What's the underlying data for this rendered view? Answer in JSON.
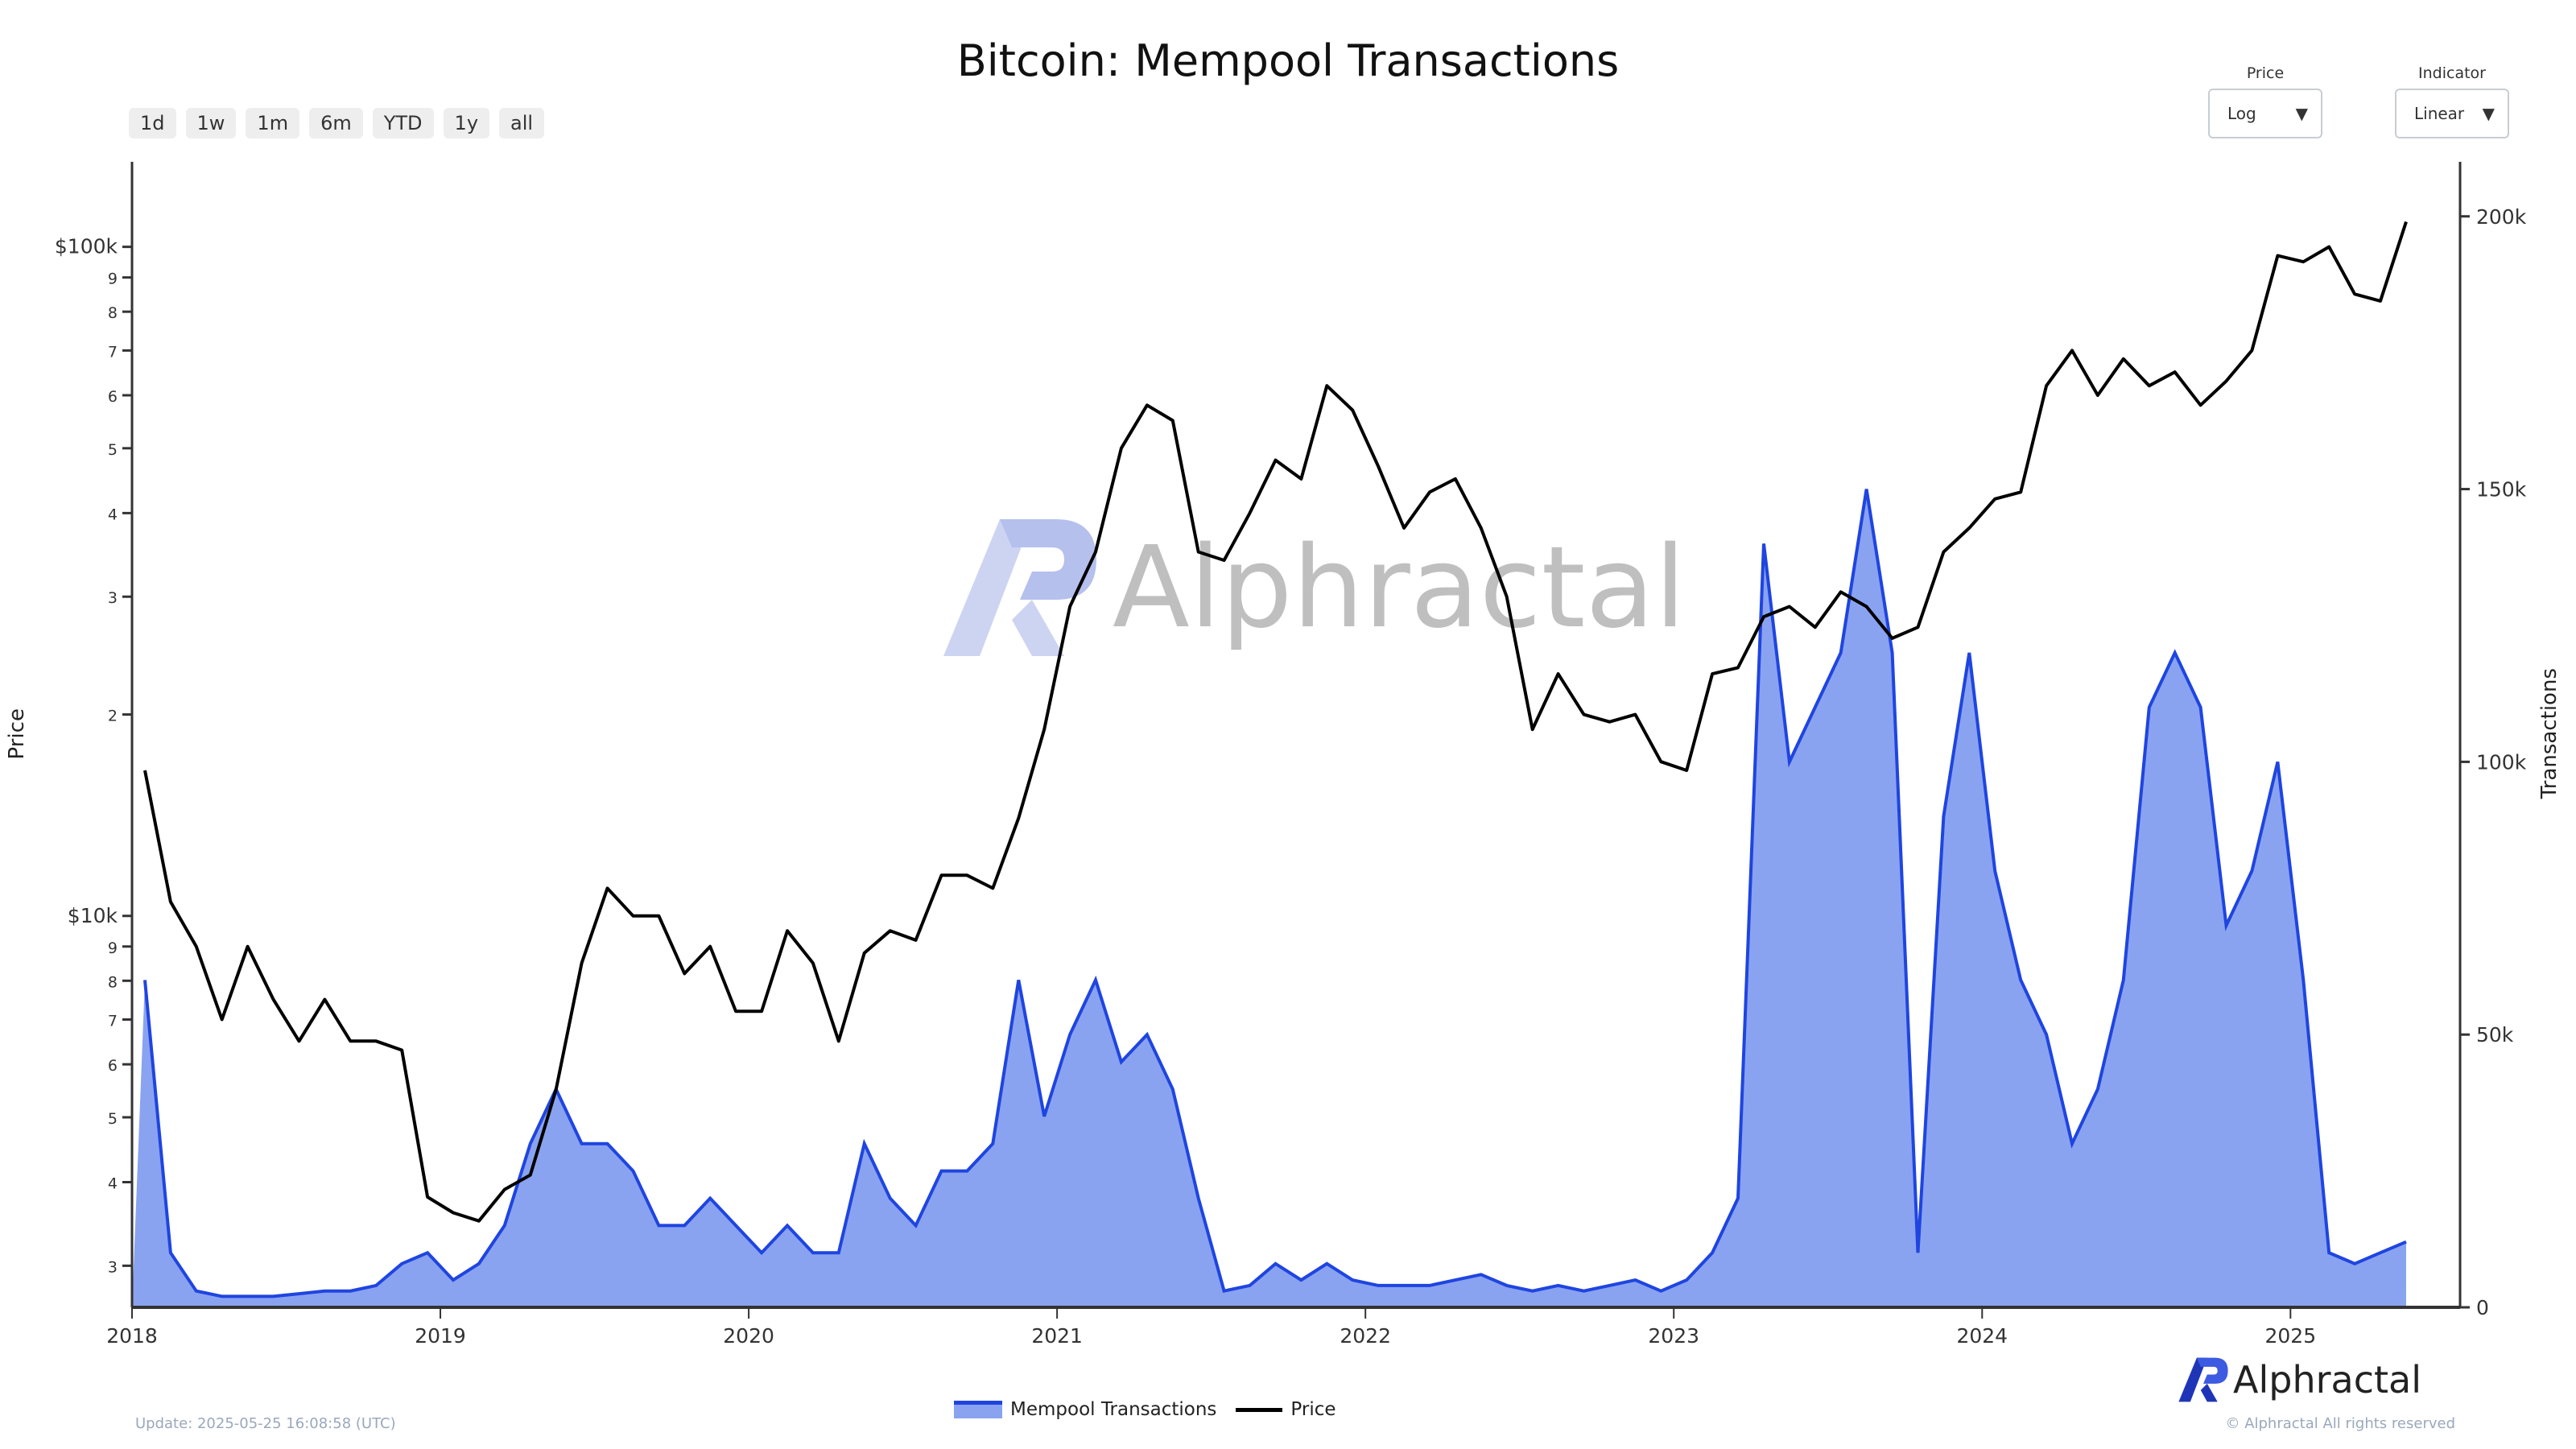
{
  "title": "Bitcoin: Mempool Transactions",
  "range_buttons": [
    "1d",
    "1w",
    "1m",
    "6m",
    "YTD",
    "1y",
    "all"
  ],
  "dropdowns": {
    "price": {
      "label": "Price",
      "value": "Log"
    },
    "indicator": {
      "label": "Indicator",
      "value": "Linear"
    }
  },
  "watermark": "Alphractal",
  "logo_text": "Alphractal",
  "footer": {
    "update": "Update: 2025-05-25 16:08:58 (UTC)",
    "copyright": "© Alphractal All rights reserved"
  },
  "colors": {
    "area_fill": "#8aa3f0",
    "area_line": "#1f45e0",
    "price_line": "#000000"
  },
  "chart_data": {
    "type": "area+line",
    "title": "Bitcoin: Mempool Transactions",
    "x_start": "2018-01",
    "x_step": "1 month",
    "x_range_years": [
      2018.0,
      2025.55
    ],
    "x_ticks": [
      "2018",
      "2019",
      "2020",
      "2021",
      "2022",
      "2023",
      "2024",
      "2025"
    ],
    "y_left": {
      "label": "Price",
      "scale": "log",
      "range": [
        2600,
        134000
      ],
      "ticks": [
        {
          "v": 100000,
          "t": "$100k"
        },
        {
          "v": 90000,
          "t": "9"
        },
        {
          "v": 80000,
          "t": "8"
        },
        {
          "v": 70000,
          "t": "7"
        },
        {
          "v": 60000,
          "t": "6"
        },
        {
          "v": 50000,
          "t": "5"
        },
        {
          "v": 40000,
          "t": "4"
        },
        {
          "v": 30000,
          "t": "3"
        },
        {
          "v": 20000,
          "t": "2"
        },
        {
          "v": 10000,
          "t": "$10k"
        },
        {
          "v": 9000,
          "t": "9"
        },
        {
          "v": 8000,
          "t": "8"
        },
        {
          "v": 7000,
          "t": "7"
        },
        {
          "v": 6000,
          "t": "6"
        },
        {
          "v": 5000,
          "t": "5"
        },
        {
          "v": 4000,
          "t": "4"
        },
        {
          "v": 3000,
          "t": "3"
        }
      ]
    },
    "y_right": {
      "label": "Transactions",
      "scale": "linear",
      "range": [
        0,
        210000
      ],
      "ticks": [
        {
          "v": 0,
          "t": "0"
        },
        {
          "v": 50000,
          "t": "50k"
        },
        {
          "v": 100000,
          "t": "100k"
        },
        {
          "v": 150000,
          "t": "150k"
        },
        {
          "v": 200000,
          "t": "200k"
        }
      ]
    },
    "legend": [
      "Mempool Transactions",
      "Price"
    ],
    "legend_position": "bottom-center",
    "series": [
      {
        "name": "Mempool Transactions",
        "type": "area",
        "axis": "right",
        "values": [
          60000,
          10000,
          3000,
          2000,
          2000,
          2000,
          2500,
          3000,
          3000,
          4000,
          8000,
          10000,
          5000,
          8000,
          15000,
          30000,
          40000,
          30000,
          30000,
          25000,
          15000,
          15000,
          20000,
          15000,
          10000,
          15000,
          10000,
          10000,
          30000,
          20000,
          15000,
          25000,
          25000,
          30000,
          60000,
          35000,
          50000,
          60000,
          45000,
          50000,
          40000,
          20000,
          3000,
          4000,
          8000,
          5000,
          8000,
          5000,
          4000,
          4000,
          4000,
          5000,
          6000,
          4000,
          3000,
          4000,
          3000,
          4000,
          5000,
          3000,
          5000,
          10000,
          20000,
          140000,
          100000,
          110000,
          120000,
          150000,
          120000,
          10000,
          90000,
          120000,
          80000,
          60000,
          50000,
          30000,
          40000,
          60000,
          110000,
          120000,
          110000,
          70000,
          80000,
          100000,
          60000,
          10000,
          8000,
          10000,
          12000
        ]
      },
      {
        "name": "Price",
        "type": "line",
        "axis": "left",
        "values": [
          16500,
          10500,
          9000,
          7000,
          9000,
          7500,
          6500,
          7500,
          6500,
          6500,
          6300,
          3800,
          3600,
          3500,
          3900,
          4100,
          5500,
          8500,
          11000,
          10000,
          10000,
          8200,
          9000,
          7200,
          7200,
          9500,
          8500,
          6500,
          8800,
          9500,
          9200,
          11500,
          11500,
          11000,
          14000,
          19000,
          29000,
          35000,
          50000,
          58000,
          55000,
          35000,
          34000,
          40000,
          48000,
          45000,
          62000,
          57000,
          47000,
          38000,
          43000,
          45000,
          38000,
          30000,
          19000,
          23000,
          20000,
          19500,
          20000,
          17000,
          16500,
          23000,
          23500,
          28000,
          29000,
          27000,
          30500,
          29000,
          26000,
          27000,
          35000,
          38000,
          42000,
          43000,
          62000,
          70000,
          60000,
          68000,
          62000,
          65000,
          58000,
          63000,
          70000,
          97000,
          95000,
          100000,
          85000,
          83000,
          109000
        ]
      }
    ]
  }
}
